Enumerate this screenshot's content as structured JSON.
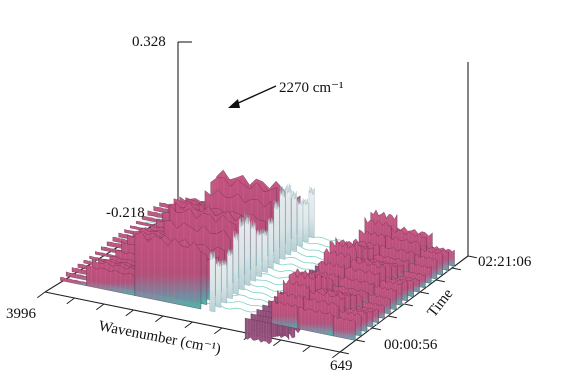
{
  "chart_data": {
    "type": "surface",
    "title": "",
    "xlabel": "Wavenumber (cm⁻¹)",
    "ylabel": "Time",
    "zlabel": "",
    "x_ticks": [
      "3996",
      "649"
    ],
    "y_ticks": [
      "02:21:06",
      "00:00:56"
    ],
    "z_ticks": [
      "0.328",
      "-0.218"
    ],
    "xlim": [
      3996,
      649
    ],
    "ylim_labels": [
      "00:00:56",
      "02:21:06"
    ],
    "zlim": [
      -0.218,
      0.328
    ],
    "annotation": {
      "text": "2270 cm⁻¹",
      "x": 2270
    },
    "bands": [
      {
        "x_from": 3996,
        "x_to": 3700,
        "peak": 0.02
      },
      {
        "x_from": 3700,
        "x_to": 3150,
        "peak": 0.1
      },
      {
        "x_from": 3150,
        "x_to": 2400,
        "peak": 0.3
      },
      {
        "x_from": 2300,
        "x_to": 2240,
        "peak": 0.328
      },
      {
        "x_from": 1900,
        "x_to": 1600,
        "peak": -0.15
      },
      {
        "x_from": 1600,
        "x_to": 1300,
        "peak": 0.18
      },
      {
        "x_from": 1300,
        "x_to": 900,
        "peak": 0.14
      },
      {
        "x_from": 900,
        "x_to": 649,
        "peak": 0.1
      }
    ],
    "colors": {
      "surface_high": "#c2507e",
      "surface_mid": "#a8557f",
      "surface_low": "#3fb7a6",
      "mesh_line": "#5c2a44",
      "baseline_mesh": "#7fd3c1",
      "axis": "#222222"
    },
    "grid": false,
    "legend": "none"
  }
}
